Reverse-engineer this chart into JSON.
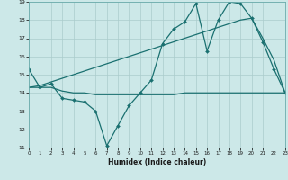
{
  "xlabel": "Humidex (Indice chaleur)",
  "bg_color": "#cce8e8",
  "grid_color": "#aacccc",
  "line_color": "#1a7070",
  "x_min": 0,
  "x_max": 23,
  "y_min": 11,
  "y_max": 19,
  "line1_x": [
    0,
    1,
    2,
    3,
    4,
    5,
    6,
    7,
    8,
    9,
    10,
    11,
    12,
    13,
    14,
    15,
    16,
    17,
    18,
    19,
    20,
    21,
    22,
    23
  ],
  "line1_y": [
    15.3,
    14.3,
    14.5,
    13.7,
    13.6,
    13.5,
    13.0,
    11.1,
    12.2,
    13.3,
    14.0,
    14.7,
    16.7,
    17.5,
    17.9,
    18.9,
    16.3,
    18.0,
    19.0,
    18.9,
    18.1,
    16.8,
    15.3,
    14.0
  ],
  "line2_x": [
    0,
    1,
    2,
    3,
    4,
    5,
    6,
    7,
    8,
    9,
    10,
    11,
    12,
    13,
    14,
    15,
    16,
    17,
    18,
    19,
    20,
    21,
    22,
    23
  ],
  "line2_y": [
    14.3,
    14.4,
    14.6,
    14.8,
    15.0,
    15.2,
    15.4,
    15.6,
    15.8,
    16.0,
    16.2,
    16.4,
    16.6,
    16.8,
    17.0,
    17.2,
    17.4,
    17.6,
    17.8,
    18.0,
    18.1,
    17.0,
    15.8,
    14.0
  ],
  "line3_x": [
    0,
    1,
    2,
    3,
    4,
    5,
    6,
    7,
    8,
    9,
    10,
    11,
    12,
    13,
    14,
    15,
    16,
    17,
    18,
    19,
    20,
    21,
    22,
    23
  ],
  "line3_y": [
    14.3,
    14.3,
    14.3,
    14.1,
    14.0,
    14.0,
    13.9,
    13.9,
    13.9,
    13.9,
    13.9,
    13.9,
    13.9,
    13.9,
    14.0,
    14.0,
    14.0,
    14.0,
    14.0,
    14.0,
    14.0,
    14.0,
    14.0,
    14.0
  ]
}
